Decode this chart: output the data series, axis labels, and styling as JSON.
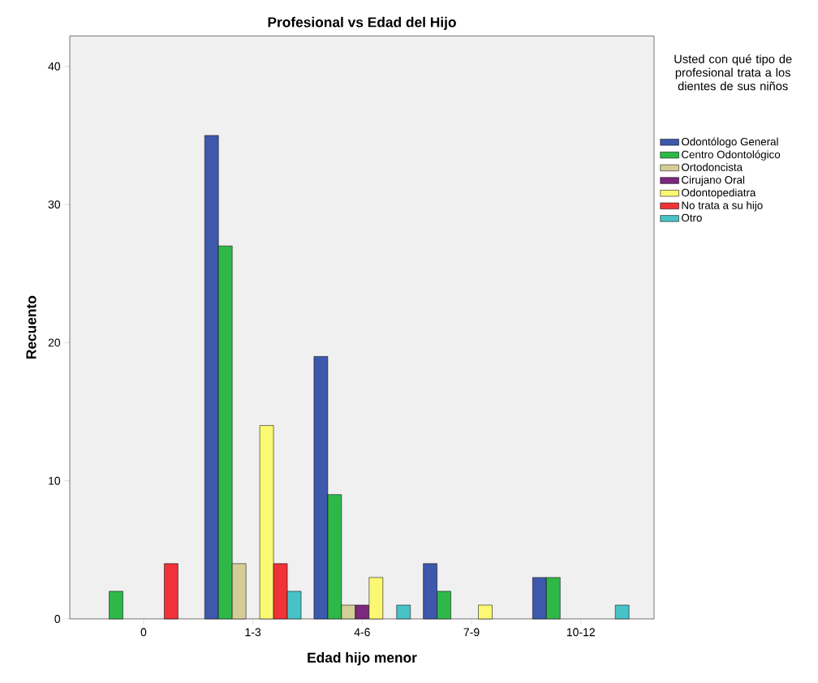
{
  "chart_data": {
    "type": "bar",
    "title": "Profesional vs Edad del Hijo",
    "xlabel": "Edad hijo menor",
    "ylabel": "Recuento",
    "legend_title": "Usted con qué tipo de profesional trata a los dientes de sus niños",
    "categories": [
      "0",
      "1-3",
      "4-6",
      "7-9",
      "10-12"
    ],
    "series": [
      {
        "name": "Odontólogo General",
        "color": "#3e58ac",
        "values": [
          null,
          35,
          19,
          4,
          3
        ]
      },
      {
        "name": "Centro Odontológico",
        "color": "#2eb848",
        "values": [
          2,
          27,
          9,
          2,
          3
        ]
      },
      {
        "name": "Ortodoncista",
        "color": "#d3ce97",
        "values": [
          null,
          4,
          1,
          null,
          null
        ]
      },
      {
        "name": "Cirujano Oral",
        "color": "#7c287d",
        "values": [
          null,
          null,
          1,
          null,
          null
        ]
      },
      {
        "name": "Odontopediatra",
        "color": "#fbf873",
        "values": [
          null,
          14,
          3,
          1,
          null
        ]
      },
      {
        "name": "No trata a su hijo",
        "color": "#ef3338",
        "values": [
          4,
          4,
          null,
          null,
          null
        ]
      },
      {
        "name": "Otro",
        "color": "#48c2c5",
        "values": [
          null,
          2,
          1,
          null,
          1
        ]
      }
    ],
    "ylim": [
      0,
      42.2
    ],
    "yticks": [
      0,
      10,
      20,
      30,
      40
    ],
    "grid": false,
    "legend": "right"
  }
}
